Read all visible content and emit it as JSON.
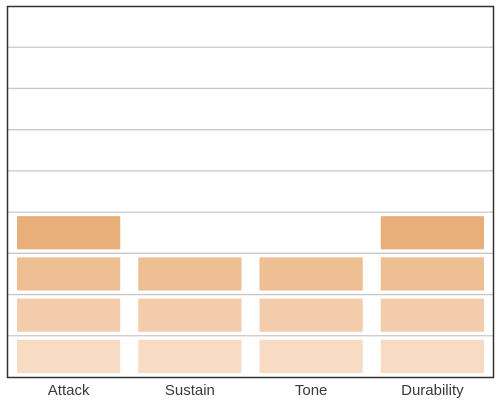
{
  "chart_data": {
    "type": "bar",
    "categories": [
      "Attack",
      "Sustain",
      "Tone",
      "Durability"
    ],
    "values": [
      4,
      3,
      3,
      4
    ],
    "ylim": [
      0,
      9
    ],
    "grid": true,
    "legend": "none",
    "colors": {
      "level_1": "#f7dcc3",
      "level_2": "#f3cdab",
      "level_3": "#eebf93",
      "level_4": "#e9af7a",
      "gridline": "#c8c8c8",
      "border": "#333333"
    }
  }
}
